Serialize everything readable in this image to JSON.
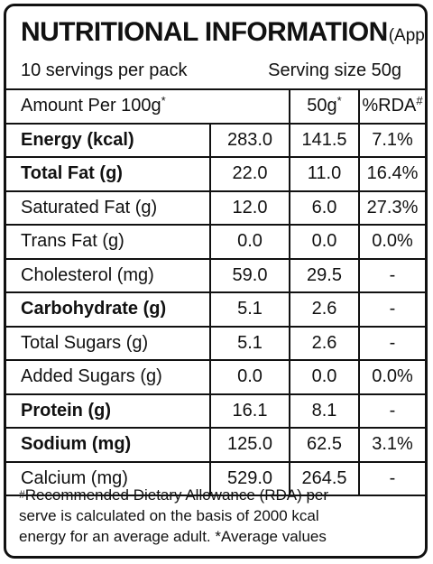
{
  "title": {
    "main": "NUTRITIONAL INFORMATION",
    "sub": "(Approx)"
  },
  "servings_per_pack": "10 servings per pack",
  "serving_size": "Serving size 50g",
  "header": {
    "amount": "Amount Per 100g",
    "amount_mark": "*",
    "serving": "50g",
    "serving_mark": "*",
    "rda": "%RDA",
    "rda_mark": "#"
  },
  "rows": [
    {
      "name": "Energy (kcal)",
      "per100": "283.0",
      "per50": "141.5",
      "rda": "7.1%",
      "bold": true
    },
    {
      "name": "Total Fat (g)",
      "per100": "22.0",
      "per50": "11.0",
      "rda": "16.4%",
      "bold": true
    },
    {
      "name": "Saturated Fat (g)",
      "per100": "12.0",
      "per50": "6.0",
      "rda": "27.3%",
      "bold": false
    },
    {
      "name": "Trans Fat (g)",
      "per100": "0.0",
      "per50": "0.0",
      "rda": "0.0%",
      "bold": false
    },
    {
      "name": "Cholesterol (mg)",
      "per100": "59.0",
      "per50": "29.5",
      "rda": "-",
      "bold": false
    },
    {
      "name": "Carbohydrate (g)",
      "per100": "5.1",
      "per50": "2.6",
      "rda": "-",
      "bold": true
    },
    {
      "name": "Total Sugars (g)",
      "per100": "5.1",
      "per50": "2.6",
      "rda": "-",
      "bold": false
    },
    {
      "name": "Added Sugars (g)",
      "per100": "0.0",
      "per50": "0.0",
      "rda": "0.0%",
      "bold": false
    },
    {
      "name": "Protein (g)",
      "per100": "16.1",
      "per50": "8.1",
      "rda": "-",
      "bold": true
    },
    {
      "name": "Sodium (mg)",
      "per100": "125.0",
      "per50": "62.5",
      "rda": "3.1%",
      "bold": true
    },
    {
      "name": "Calcium (mg)",
      "per100": "529.0",
      "per50": "264.5",
      "rda": "-",
      "bold": false
    }
  ],
  "footnote": {
    "mark": "#",
    "line1": "Recommended Dietary Allowance (RDA) per",
    "line2": "serve is calculated on the basis of 2000 kcal",
    "line3": "energy for an average adult.  *Average values"
  }
}
